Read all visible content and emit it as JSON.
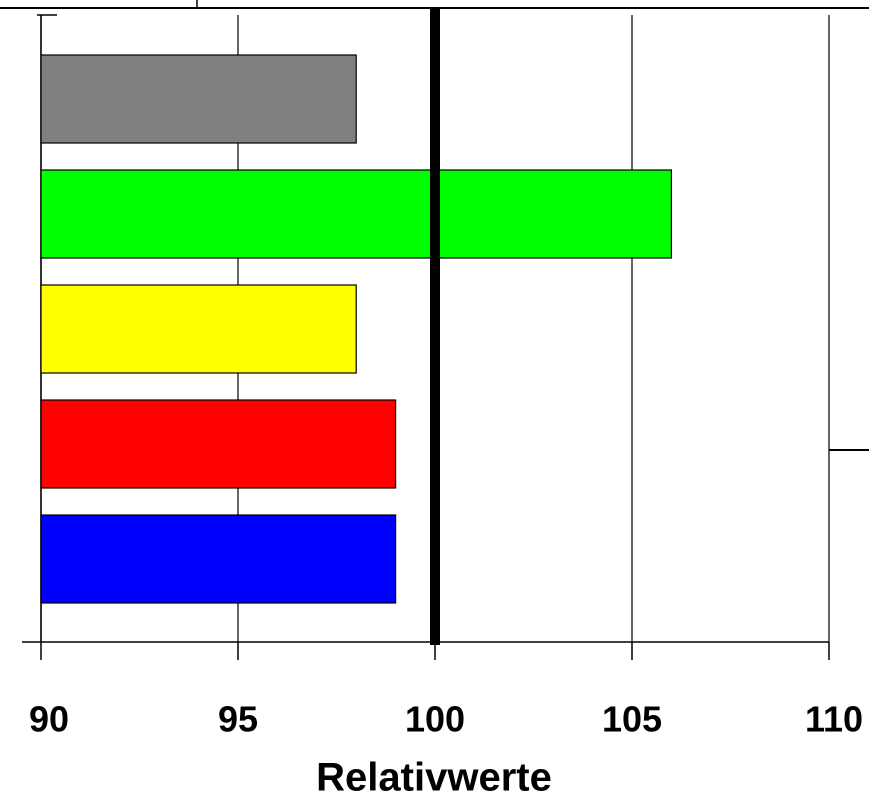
{
  "chart_data": {
    "type": "hbar",
    "categories": [
      null,
      null,
      null,
      null,
      null
    ],
    "values": [
      98,
      106,
      98,
      99,
      99
    ],
    "colors": [
      "#808080",
      "#00ff00",
      "#ffff00",
      "#ff0000",
      "#0000ff"
    ],
    "xlim": [
      90,
      110
    ],
    "xticks": [
      90,
      95,
      100,
      105,
      110
    ],
    "reference_line": 100,
    "x_label": "Relativwerte",
    "grid": true
  }
}
